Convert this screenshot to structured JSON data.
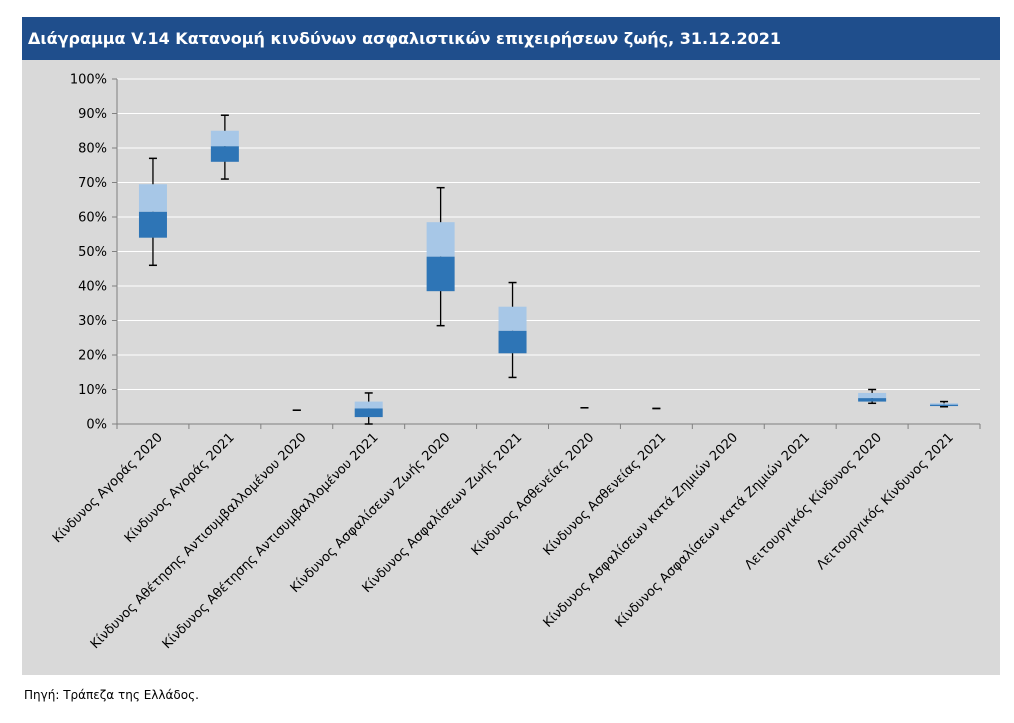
{
  "header": {
    "title": "Διάγραμμα V.14 Κατανομή κινδύνων ασφαλιστικών επιχειρήσεων ζωής, 31.12.2021"
  },
  "footer": {
    "source": "Πηγή: Τράπεζα της Ελλάδος."
  },
  "chart_data": {
    "type": "box",
    "title": "Διάγραμμα V.14 Κατανομή κινδύνων ασφαλιστικών επιχειρήσεων ζωής, 31.12.2021",
    "ylim": [
      0,
      100
    ],
    "yticks": [
      "0%",
      "10%",
      "20%",
      "30%",
      "40%",
      "50%",
      "60%",
      "70%",
      "80%",
      "90%",
      "100%"
    ],
    "grid": true,
    "colors": {
      "upper_box": "#a7c7e7",
      "lower_box": "#2e75b6",
      "whisker": "#000000",
      "grid": "#ffffff",
      "background": "#d9d9d9",
      "title_bar": "#1f4e8c"
    },
    "categories": [
      "Κίνδυνος Αγοράς 2020",
      "Κίνδυνος Αγοράς 2021",
      "Κίνδυνος Αθέτησης Αντισυμβαλλομένου 2020",
      "Κίνδυνος Αθέτησης Αντισυμβαλλομένου 2021",
      "Κίνδυνος Ασφαλίσεων Ζωής 2020",
      "Κίνδυνος Ασφαλίσεων Ζωής 2021",
      "Κίνδυνος Ασθενείας 2020",
      "Κίνδυνος Ασθενείας 2021",
      "Κίνδυνος Ασφαλίσεων κατά Ζημιών 2020",
      "Κίνδυνος Ασφαλίσεων κατά Ζημιών 2021",
      "Λειτουργικός Κίνδυνος 2020",
      "Λειτουργικός Κίνδυνος 2021"
    ],
    "boxes": [
      {
        "min": 46,
        "q1": 54,
        "median": 61.5,
        "q3": 69.5,
        "max": 77
      },
      {
        "min": 71,
        "q1": 76,
        "median": 80.5,
        "q3": 85,
        "max": 89.5
      },
      {
        "min": 4,
        "q1": 4,
        "median": 4,
        "q3": 4,
        "max": 4
      },
      {
        "min": 0,
        "q1": 2,
        "median": 4.5,
        "q3": 6.5,
        "max": 9
      },
      {
        "min": 28.5,
        "q1": 38.5,
        "median": 48.5,
        "q3": 58.5,
        "max": 68.5
      },
      {
        "min": 13.5,
        "q1": 20.5,
        "median": 27,
        "q3": 34,
        "max": 41
      },
      {
        "min": 4.7,
        "q1": 4.7,
        "median": 4.7,
        "q3": 4.7,
        "max": 4.7
      },
      {
        "min": 4.5,
        "q1": 4.5,
        "median": 4.5,
        "q3": 4.5,
        "max": 4.5
      },
      null,
      null,
      {
        "min": 6,
        "q1": 6.5,
        "median": 7.5,
        "q3": 9,
        "max": 10
      },
      {
        "min": 5,
        "q1": 5.2,
        "median": 5.6,
        "q3": 6,
        "max": 6.5
      }
    ]
  }
}
